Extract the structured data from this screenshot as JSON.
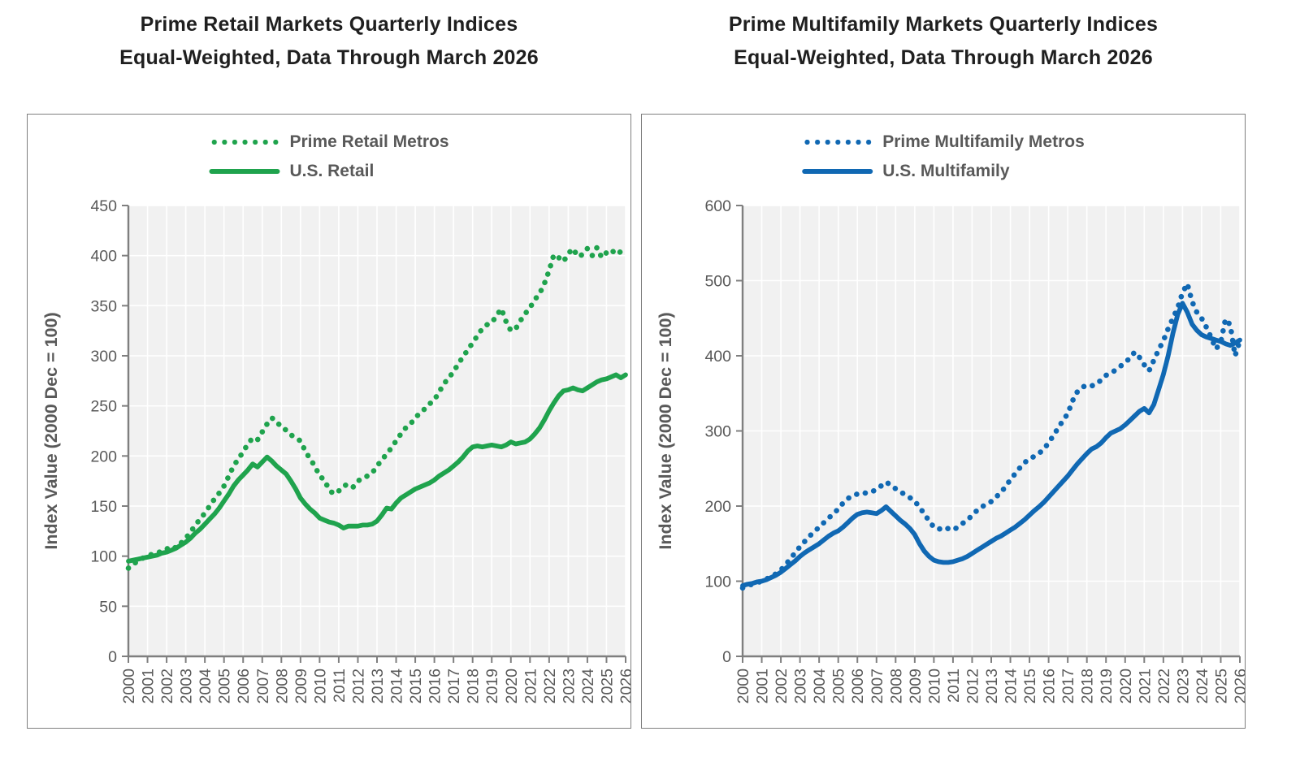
{
  "page": {
    "background": "#ffffff"
  },
  "charts": [
    {
      "id": "retail",
      "title_line1": "Prime Retail Markets Quarterly Indices",
      "title_line2": "Equal-Weighted, Data Through March 2026",
      "color": "#1fa34d",
      "legend": [
        {
          "label": "Prime Retail Metros",
          "style": "dotted"
        },
        {
          "label": "U.S. Retail",
          "style": "solid"
        }
      ],
      "y_axis": {
        "title": "Index Value (2000 Dec = 100)",
        "min": 0,
        "max": 450,
        "step": 50
      },
      "x_axis": {
        "start_year": 2000,
        "end_year": 2026
      }
    },
    {
      "id": "multifamily",
      "title_line1": "Prime Multifamily Markets Quarterly Indices",
      "title_line2": "Equal-Weighted, Data Through March 2026",
      "color": "#1068b3",
      "legend": [
        {
          "label": "Prime Multifamily Metros",
          "style": "dotted"
        },
        {
          "label": "U.S. Multifamily",
          "style": "solid"
        }
      ],
      "y_axis": {
        "title": "Index Value (2000 Dec = 100)",
        "min": 0,
        "max": 600,
        "step": 100
      },
      "x_axis": {
        "start_year": 2000,
        "end_year": 2026
      }
    }
  ],
  "chart_data": [
    {
      "type": "line",
      "title": "Prime Retail Markets Quarterly Indices — Equal-Weighted, Data Through March 2026",
      "xlabel": "",
      "ylabel": "Index Value (2000 Dec = 100)",
      "ylim": [
        0,
        450
      ],
      "y_step": 50,
      "x_start": 2000.0,
      "x_step": 0.25,
      "x_ticks": [
        2000,
        2001,
        2002,
        2003,
        2004,
        2005,
        2006,
        2007,
        2008,
        2009,
        2010,
        2011,
        2012,
        2013,
        2014,
        2015,
        2016,
        2017,
        2018,
        2019,
        2020,
        2021,
        2022,
        2023,
        2024,
        2025,
        2026
      ],
      "grid": true,
      "legend_position": "top-center",
      "series": [
        {
          "name": "Prime Retail Metros",
          "style": "dotted",
          "values": [
            88,
            92,
            95,
            98,
            100,
            102,
            104,
            104,
            107,
            110,
            108,
            113,
            118,
            124,
            131,
            137,
            143,
            150,
            157,
            163,
            170,
            180,
            190,
            197,
            204,
            212,
            218,
            216,
            224,
            232,
            238,
            235,
            228,
            226,
            221,
            218,
            215,
            205,
            197,
            190,
            180,
            176,
            166,
            162,
            165,
            170,
            172,
            169,
            175,
            178,
            180,
            183,
            190,
            196,
            202,
            208,
            215,
            222,
            228,
            232,
            238,
            243,
            247,
            252,
            256,
            264,
            272,
            278,
            284,
            292,
            299,
            306,
            313,
            320,
            327,
            331,
            333,
            340,
            347,
            334,
            325,
            327,
            335,
            342,
            348,
            356,
            362,
            372,
            385,
            401,
            398,
            394,
            402,
            407,
            399,
            401,
            407,
            400,
            408,
            398,
            403,
            406,
            401,
            404,
            399
          ]
        },
        {
          "name": "U.S. Retail",
          "style": "solid",
          "values": [
            95,
            96,
            97,
            98,
            99,
            100,
            101,
            103,
            104,
            106,
            108,
            111,
            114,
            118,
            123,
            127,
            132,
            137,
            142,
            148,
            155,
            162,
            170,
            176,
            181,
            186,
            192,
            189,
            194,
            199,
            195,
            190,
            186,
            182,
            175,
            167,
            158,
            152,
            147,
            143,
            138,
            136,
            134,
            133,
            131,
            128,
            130,
            130,
            130,
            131,
            131,
            132,
            135,
            141,
            148,
            147,
            153,
            158,
            161,
            164,
            167,
            169,
            171,
            173,
            176,
            180,
            183,
            186,
            190,
            194,
            199,
            205,
            209,
            210,
            209,
            210,
            211,
            210,
            209,
            211,
            214,
            212,
            213,
            214,
            217,
            222,
            228,
            236,
            245,
            253,
            260,
            265,
            266,
            268,
            266,
            265,
            268,
            271,
            274,
            276,
            277,
            279,
            281,
            278,
            281
          ]
        }
      ]
    },
    {
      "type": "line",
      "title": "Prime Multifamily Markets Quarterly Indices — Equal-Weighted, Data Through March 2026",
      "xlabel": "",
      "ylabel": "Index Value (2000 Dec = 100)",
      "ylim": [
        0,
        600
      ],
      "y_step": 100,
      "x_start": 2000.0,
      "x_step": 0.25,
      "x_ticks": [
        2000,
        2001,
        2002,
        2003,
        2004,
        2005,
        2006,
        2007,
        2008,
        2009,
        2010,
        2011,
        2012,
        2013,
        2014,
        2015,
        2016,
        2017,
        2018,
        2019,
        2020,
        2021,
        2022,
        2023,
        2024,
        2025,
        2026
      ],
      "grid": true,
      "legend_position": "top-center",
      "series": [
        {
          "name": "Prime Multifamily Metros",
          "style": "dotted",
          "values": [
            91,
            94,
            96,
            98,
            100,
            103,
            106,
            110,
            115,
            122,
            130,
            138,
            146,
            153,
            160,
            166,
            172,
            178,
            184,
            190,
            196,
            204,
            210,
            214,
            216,
            218,
            217,
            219,
            222,
            227,
            232,
            228,
            223,
            219,
            215,
            211,
            207,
            198,
            190,
            180,
            172,
            169,
            172,
            170,
            168,
            172,
            177,
            181,
            188,
            194,
            199,
            202,
            206,
            212,
            218,
            226,
            235,
            243,
            251,
            258,
            263,
            266,
            270,
            276,
            284,
            294,
            304,
            314,
            323,
            340,
            352,
            358,
            361,
            360,
            362,
            368,
            374,
            377,
            381,
            386,
            391,
            397,
            405,
            398,
            388,
            380,
            394,
            408,
            420,
            436,
            450,
            464,
            484,
            496,
            472,
            458,
            450,
            438,
            424,
            409,
            418,
            449,
            441,
            400,
            420
          ]
        },
        {
          "name": "U.S. Multifamily",
          "style": "solid",
          "values": [
            94,
            96,
            97,
            99,
            100,
            102,
            105,
            108,
            112,
            117,
            122,
            127,
            133,
            138,
            142,
            146,
            150,
            155,
            160,
            164,
            167,
            172,
            178,
            184,
            189,
            191,
            192,
            191,
            190,
            194,
            199,
            193,
            187,
            181,
            176,
            170,
            162,
            150,
            140,
            133,
            128,
            126,
            125,
            125,
            126,
            128,
            130,
            133,
            137,
            141,
            145,
            149,
            153,
            157,
            160,
            164,
            168,
            172,
            177,
            182,
            188,
            194,
            199,
            205,
            212,
            219,
            226,
            233,
            240,
            248,
            256,
            263,
            270,
            276,
            279,
            284,
            291,
            297,
            300,
            303,
            308,
            314,
            320,
            326,
            330,
            324,
            335,
            355,
            375,
            400,
            430,
            455,
            470,
            458,
            442,
            434,
            428,
            425,
            423,
            421,
            419,
            416,
            414,
            417,
            421
          ]
        }
      ]
    }
  ]
}
